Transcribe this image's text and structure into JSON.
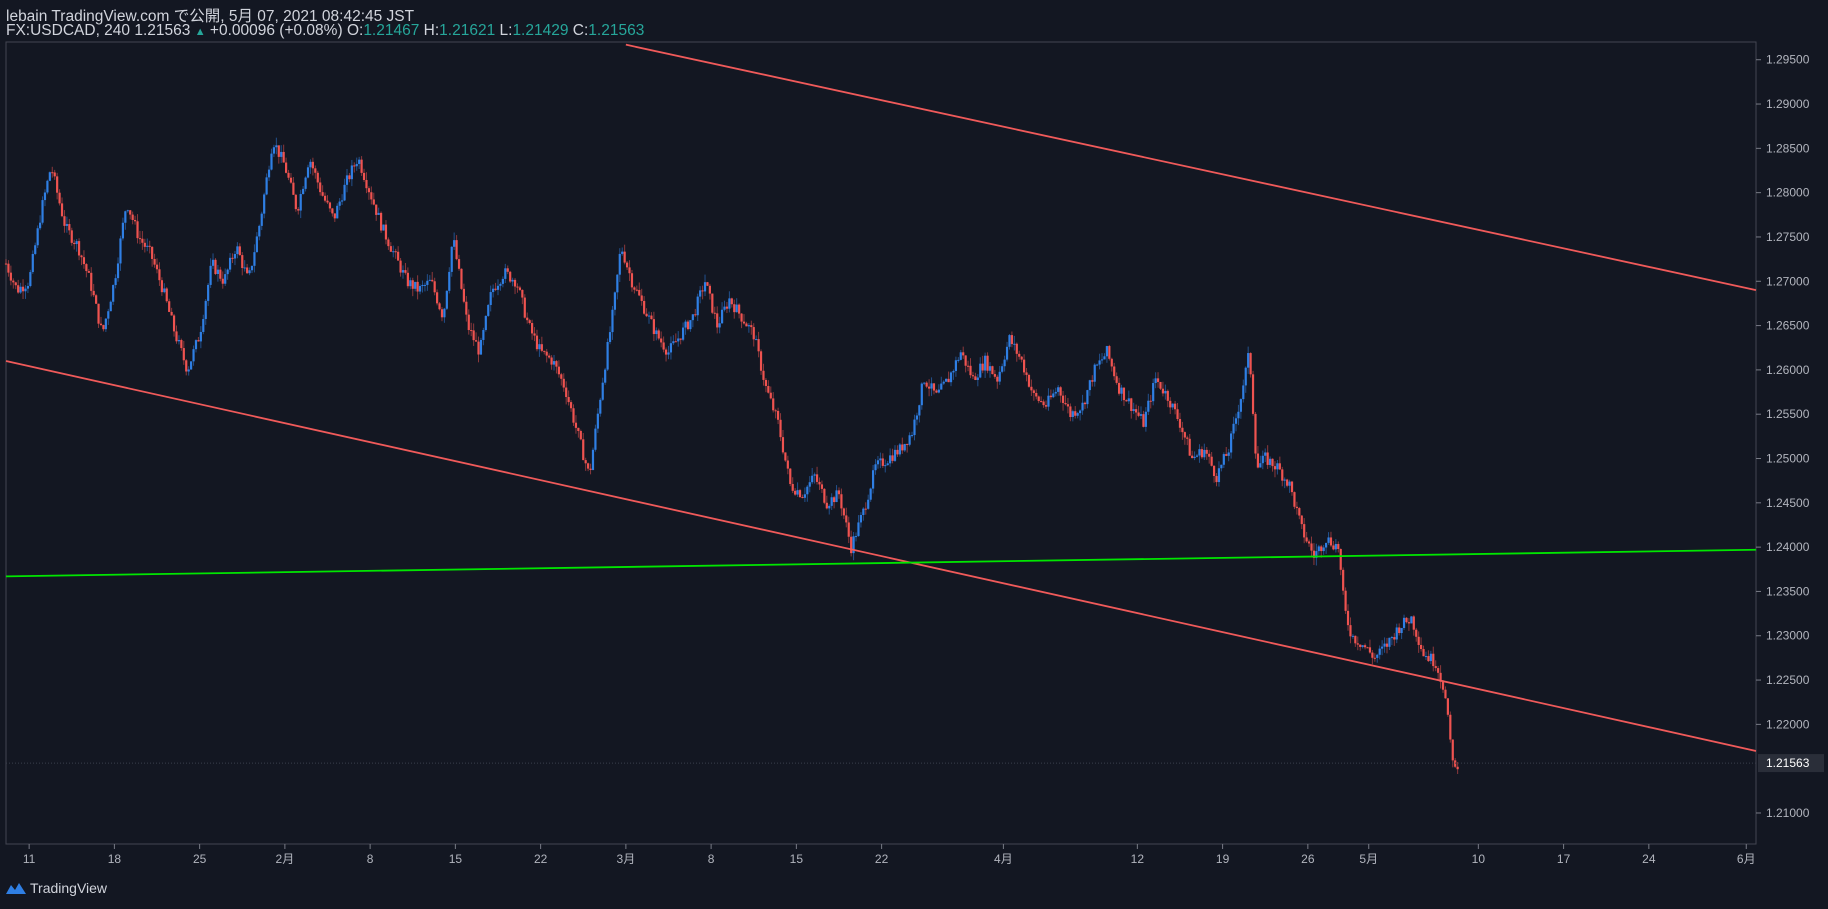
{
  "header": {
    "publisher": "lebain TradingView.com で公開, 5月 07, 2021 08:42:45 JST",
    "symbol": "FX:USDCAD, 240",
    "last": "1.21563",
    "change": "+0.00096 (+0.08%)",
    "o_label": "O:",
    "o_value": "1.21467",
    "h_label": "H:",
    "h_value": "1.21621",
    "l_label": "L:",
    "l_value": "1.21429",
    "c_label": "C:",
    "c_value": "1.21563"
  },
  "brand": "TradingView",
  "colors": {
    "bg": "#131722",
    "up": "#2f7fe4",
    "down": "#ef5350",
    "channel": "#f05a5a",
    "support": "#00e600",
    "axis": "#b2b5be"
  },
  "chart_data": {
    "type": "candlestick",
    "title": "FX:USDCAD, 240",
    "ylim": [
      1.2065,
      1.297
    ],
    "y_ticks": [
      1.295,
      1.29,
      1.285,
      1.28,
      1.275,
      1.27,
      1.265,
      1.26,
      1.255,
      1.25,
      1.245,
      1.24,
      1.235,
      1.23,
      1.225,
      1.22,
      1.21
    ],
    "y_tick_labels": [
      "1.29500",
      "1.29000",
      "1.28500",
      "1.28000",
      "1.27500",
      "1.27000",
      "1.26500",
      "1.26000",
      "1.25500",
      "1.25000",
      "1.24500",
      "1.24000",
      "1.23500",
      "1.23000",
      "1.22500",
      "1.22000",
      "1.21000"
    ],
    "last_price_label": "1.21563",
    "last_price": 1.21563,
    "x_ticks": [
      {
        "label": "11",
        "day": 11
      },
      {
        "label": "18",
        "day": 18
      },
      {
        "label": "25",
        "day": 25
      },
      {
        "label": "2月",
        "day": 32
      },
      {
        "label": "8",
        "day": 39
      },
      {
        "label": "15",
        "day": 46
      },
      {
        "label": "22",
        "day": 53
      },
      {
        "label": "3月",
        "day": 60
      },
      {
        "label": "8",
        "day": 67
      },
      {
        "label": "15",
        "day": 74
      },
      {
        "label": "22",
        "day": 81
      },
      {
        "label": "4月",
        "day": 91
      },
      {
        "label": "12",
        "day": 102
      },
      {
        "label": "19",
        "day": 109
      },
      {
        "label": "26",
        "day": 116
      },
      {
        "label": "5月",
        "day": 121
      },
      {
        "label": "10",
        "day": 130
      },
      {
        "label": "17",
        "day": 137
      },
      {
        "label": "24",
        "day": 144
      },
      {
        "label": "6月",
        "day": 152
      }
    ],
    "x_range_days": [
      9.1,
      152.8
    ],
    "lines": [
      {
        "name": "channel-upper",
        "color": "#f05a5a",
        "from": {
          "day": 60,
          "price": 1.2967
        },
        "to": {
          "day": 152.8,
          "price": 1.269
        }
      },
      {
        "name": "channel-lower",
        "color": "#f05a5a",
        "from": {
          "day": 9.1,
          "price": 1.261
        },
        "to": {
          "day": 152.8,
          "price": 1.217
        }
      },
      {
        "name": "support",
        "color": "#00e600",
        "from": {
          "day": 9.1,
          "price": 1.2367
        },
        "to": {
          "day": 152.8,
          "price": 1.2397
        }
      }
    ],
    "price_path": [
      [
        9.1,
        1.272
      ],
      [
        10,
        1.269
      ],
      [
        11,
        1.27
      ],
      [
        12,
        1.278
      ],
      [
        12.8,
        1.283
      ],
      [
        13.3,
        1.28
      ],
      [
        14,
        1.276
      ],
      [
        15,
        1.274
      ],
      [
        16,
        1.27
      ],
      [
        17,
        1.264
      ],
      [
        18,
        1.27
      ],
      [
        19,
        1.279
      ],
      [
        20,
        1.275
      ],
      [
        21,
        1.273
      ],
      [
        22,
        1.269
      ],
      [
        23,
        1.264
      ],
      [
        24,
        1.26
      ],
      [
        25,
        1.264
      ],
      [
        26,
        1.272
      ],
      [
        27,
        1.27
      ],
      [
        28,
        1.274
      ],
      [
        29,
        1.27
      ],
      [
        30,
        1.277
      ],
      [
        31,
        1.286
      ],
      [
        32,
        1.283
      ],
      [
        33,
        1.278
      ],
      [
        34,
        1.284
      ],
      [
        35,
        1.28
      ],
      [
        36,
        1.277
      ],
      [
        37,
        1.281
      ],
      [
        38,
        1.284
      ],
      [
        39,
        1.28
      ],
      [
        40,
        1.276
      ],
      [
        41,
        1.273
      ],
      [
        42,
        1.27
      ],
      [
        43,
        1.269
      ],
      [
        44,
        1.27
      ],
      [
        45,
        1.266
      ],
      [
        45.8,
        1.275
      ],
      [
        47,
        1.265
      ],
      [
        48,
        1.262
      ],
      [
        49,
        1.269
      ],
      [
        50,
        1.271
      ],
      [
        51,
        1.27
      ],
      [
        52,
        1.265
      ],
      [
        53,
        1.262
      ],
      [
        54,
        1.261
      ],
      [
        55,
        1.258
      ],
      [
        56,
        1.253
      ],
      [
        57,
        1.248
      ],
      [
        58,
        1.258
      ],
      [
        59,
        1.267
      ],
      [
        59.6,
        1.274
      ],
      [
        60.5,
        1.27
      ],
      [
        61.5,
        1.267
      ],
      [
        62.5,
        1.264
      ],
      [
        63.5,
        1.262
      ],
      [
        64.5,
        1.264
      ],
      [
        65.5,
        1.266
      ],
      [
        66.5,
        1.27
      ],
      [
        67.5,
        1.265
      ],
      [
        68.5,
        1.268
      ],
      [
        69.5,
        1.266
      ],
      [
        70.5,
        1.264
      ],
      [
        71.5,
        1.258
      ],
      [
        72.5,
        1.254
      ],
      [
        73.5,
        1.247
      ],
      [
        74.5,
        1.246
      ],
      [
        75.5,
        1.248
      ],
      [
        76.5,
        1.245
      ],
      [
        77.5,
        1.246
      ],
      [
        78.5,
        1.24
      ],
      [
        79.5,
        1.244
      ],
      [
        80.5,
        1.249
      ],
      [
        81.5,
        1.25
      ],
      [
        82.5,
        1.251
      ],
      [
        83.5,
        1.253
      ],
      [
        84.5,
        1.259
      ],
      [
        85.5,
        1.257
      ],
      [
        86.5,
        1.259
      ],
      [
        87.5,
        1.262
      ],
      [
        88.5,
        1.259
      ],
      [
        89.5,
        1.261
      ],
      [
        90.5,
        1.259
      ],
      [
        91.5,
        1.2635
      ],
      [
        92.5,
        1.261
      ],
      [
        93.5,
        1.257
      ],
      [
        94.5,
        1.256
      ],
      [
        95.5,
        1.258
      ],
      [
        96.5,
        1.255
      ],
      [
        97.5,
        1.256
      ],
      [
        98.5,
        1.26
      ],
      [
        99.5,
        1.262
      ],
      [
        100.5,
        1.258
      ],
      [
        101.5,
        1.256
      ],
      [
        102.5,
        1.254
      ],
      [
        103.5,
        1.259
      ],
      [
        104.5,
        1.257
      ],
      [
        105.5,
        1.254
      ],
      [
        106.5,
        1.25
      ],
      [
        107.5,
        1.251
      ],
      [
        108.5,
        1.248
      ],
      [
        109.5,
        1.251
      ],
      [
        110.5,
        1.257
      ],
      [
        111.2,
        1.262
      ],
      [
        111.8,
        1.249
      ],
      [
        112.5,
        1.25
      ],
      [
        113.5,
        1.249
      ],
      [
        114.5,
        1.247
      ],
      [
        115.5,
        1.242
      ],
      [
        116.5,
        1.239
      ],
      [
        117.5,
        1.241
      ],
      [
        118.5,
        1.24
      ],
      [
        119,
        1.233
      ],
      [
        119.6,
        1.23
      ],
      [
        120.5,
        1.229
      ],
      [
        121.5,
        1.2275
      ],
      [
        122.5,
        1.229
      ],
      [
        123.5,
        1.231
      ],
      [
        124.5,
        1.232
      ],
      [
        125.5,
        1.228
      ],
      [
        126.5,
        1.227
      ],
      [
        127.2,
        1.224
      ],
      [
        127.7,
        1.218
      ],
      [
        128.1,
        1.2148
      ],
      [
        128.3,
        1.21563
      ]
    ]
  }
}
